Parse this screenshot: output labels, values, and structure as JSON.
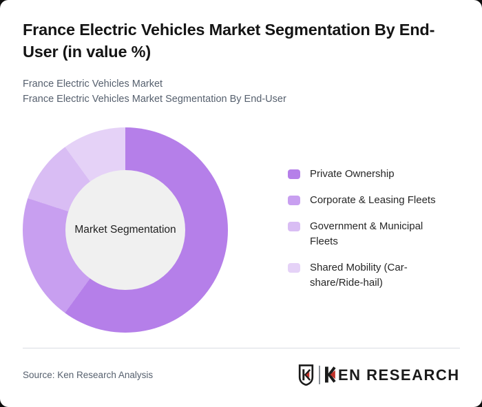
{
  "header": {
    "title": "France Electric Vehicles Market Segmentation By End-User (in value %)",
    "subtitle_line1": "France Electric Vehicles Market",
    "subtitle_line2": "France Electric Vehicles Market Segmentation By End-User"
  },
  "chart_data": {
    "type": "pie",
    "variant": "donut",
    "title": "France Electric Vehicles Market Segmentation By End-User (in value %)",
    "center_label": "Market Segmentation",
    "units": "percent of market value",
    "start_angle_deg": 0,
    "direction": "clockwise",
    "legend_position": "right",
    "hole_color": "#f0f0f0",
    "segments": [
      {
        "label": "Private Ownership",
        "value": 60,
        "color": "#b57fe9"
      },
      {
        "label": "Corporate & Leasing Fleets",
        "value": 20,
        "color": "#c89ff0"
      },
      {
        "label": "Government & Municipal Fleets",
        "value": 10,
        "color": "#d9bdf4"
      },
      {
        "label": "Shared Mobility (Car-share/Ride-hail)",
        "value": 10,
        "color": "#e5d2f7"
      }
    ]
  },
  "footer": {
    "source": "Source: Ken Research Analysis",
    "brand": {
      "name": "KEN RESEARCH",
      "wordmark_rest": "EN RESEARCH",
      "accent_color": "#c13028",
      "text_color": "#1b1b1b"
    }
  }
}
